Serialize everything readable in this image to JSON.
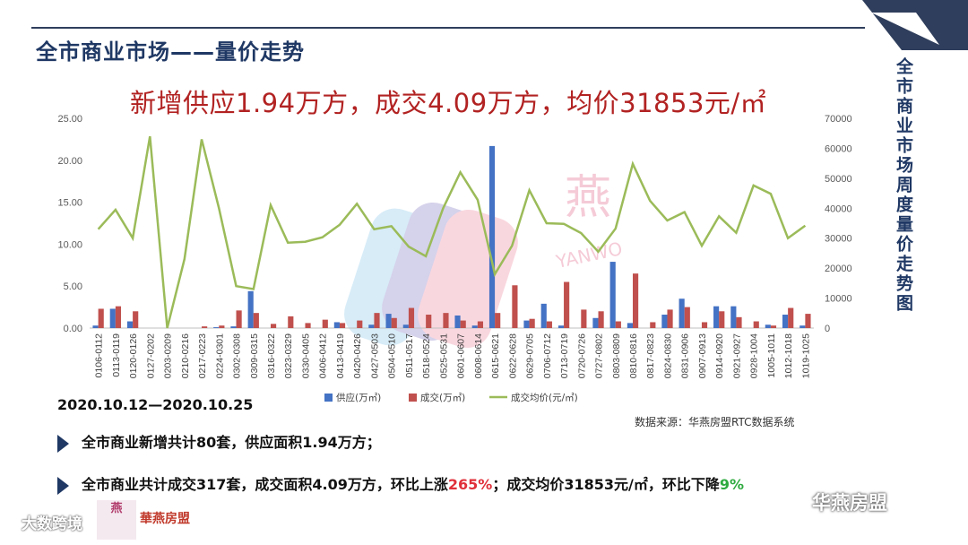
{
  "page": {
    "title": "全市商业市场——量价走势",
    "side_title": "全市商业市场周度量价走势图",
    "headline": "新增供应1.94万方，成交4.09万方，均价31853元/㎡",
    "date_range": "2020.10.12—2020.10.25",
    "source": "数据来源：华燕房盟RTC数据系统",
    "bullet1": "全市商业新增共计80套，供应面积1.94万方；",
    "bullet2_a": "全市商业共计成交317套，成交面积4.09万方，环比上涨",
    "bullet2_pct1": "265%",
    "bullet2_b": "；成交均价31853元/㎡，环比下降",
    "bullet2_pct2": "9%",
    "watermark_cn": "燕",
    "watermark_en": "YANWO",
    "logo_small": "燕",
    "logo_brand": "華燕房盟",
    "logo_bottom": "大数跨境",
    "wechat": "华燕房盟",
    "colors": {
      "supply": "#4472c4",
      "deal": "#c0504d",
      "price": "#9bbb59",
      "title": "#1f3864",
      "headline": "#b22222"
    }
  },
  "chart_data": {
    "type": "bar+line",
    "categories": [
      "0106-0112",
      "0113-0119",
      "0120-0126",
      "0127-0202",
      "0203-0209",
      "0210-0216",
      "0217-0223",
      "0224-0301",
      "0302-0308",
      "0309-0315",
      "0316-0322",
      "0323-0329",
      "0330-0405",
      "0406-0412",
      "0413-0419",
      "0420-0426",
      "0427-0503",
      "0504-0510",
      "0511-0517",
      "0518-0524",
      "0525-0531",
      "0601-0607",
      "0608-0614",
      "0615-0621",
      "0622-0628",
      "0629-0705",
      "0706-0712",
      "0713-0719",
      "0720-0726",
      "0727-0802",
      "0803-0809",
      "0810-0816",
      "0817-0823",
      "0824-0830",
      "0831-0906",
      "0907-0913",
      "0914-0920",
      "0921-0927",
      "0928-1004",
      "1005-1011",
      "1012-1018",
      "1019-1025"
    ],
    "series": [
      {
        "name": "供应(万㎡)",
        "axis": "left",
        "kind": "bar",
        "values": [
          0.3,
          2.3,
          0.8,
          0,
          0,
          0,
          0,
          0.1,
          0.2,
          4.4,
          0,
          0,
          0,
          0,
          0.7,
          0,
          0.4,
          1.7,
          0.4,
          0,
          0,
          1.5,
          0.3,
          21.7,
          0,
          0.9,
          2.9,
          0.3,
          0,
          1.2,
          7.9,
          0.6,
          0,
          1.6,
          3.5,
          0,
          2.6,
          2.6,
          0,
          0.4,
          1.6,
          0.3
        ]
      },
      {
        "name": "成交(万㎡)",
        "axis": "left",
        "kind": "bar",
        "values": [
          2.3,
          2.6,
          2.0,
          0,
          0,
          0,
          0.2,
          0.3,
          2.1,
          1.8,
          0.5,
          1.4,
          0.6,
          1.0,
          0.6,
          0.9,
          1.8,
          1.2,
          2.4,
          1.6,
          1.8,
          0.9,
          0.8,
          1.8,
          5.1,
          1.1,
          0.8,
          5.5,
          2.2,
          2.0,
          0.8,
          6.5,
          0.7,
          2.2,
          2.5,
          0.7,
          2.0,
          1.3,
          0.8,
          0.3,
          2.4,
          1.7
        ]
      },
      {
        "name": "成交均价(元/㎡)",
        "axis": "right",
        "kind": "line",
        "values": [
          33000,
          39500,
          30000,
          64000,
          0,
          23000,
          63000,
          40000,
          14000,
          13000,
          41000,
          28500,
          28800,
          30300,
          34500,
          41500,
          33000,
          34000,
          27200,
          24000,
          40000,
          52000,
          42800,
          18000,
          27500,
          46000,
          35000,
          34800,
          31700,
          25500,
          33200,
          54800,
          42500,
          35900,
          38700,
          27500,
          37300,
          31800,
          47600,
          44800,
          30000,
          34200
        ]
      }
    ],
    "yleft": {
      "min": 0,
      "max": 25,
      "ticks": [
        "0.00",
        "5.00",
        "10.00",
        "15.00",
        "20.00",
        "25.00"
      ]
    },
    "yright": {
      "min": 0,
      "max": 70000,
      "ticks": [
        "0",
        "10000",
        "20000",
        "30000",
        "40000",
        "50000",
        "60000",
        "70000"
      ]
    },
    "legend_position": "bottom",
    "grid": false
  }
}
